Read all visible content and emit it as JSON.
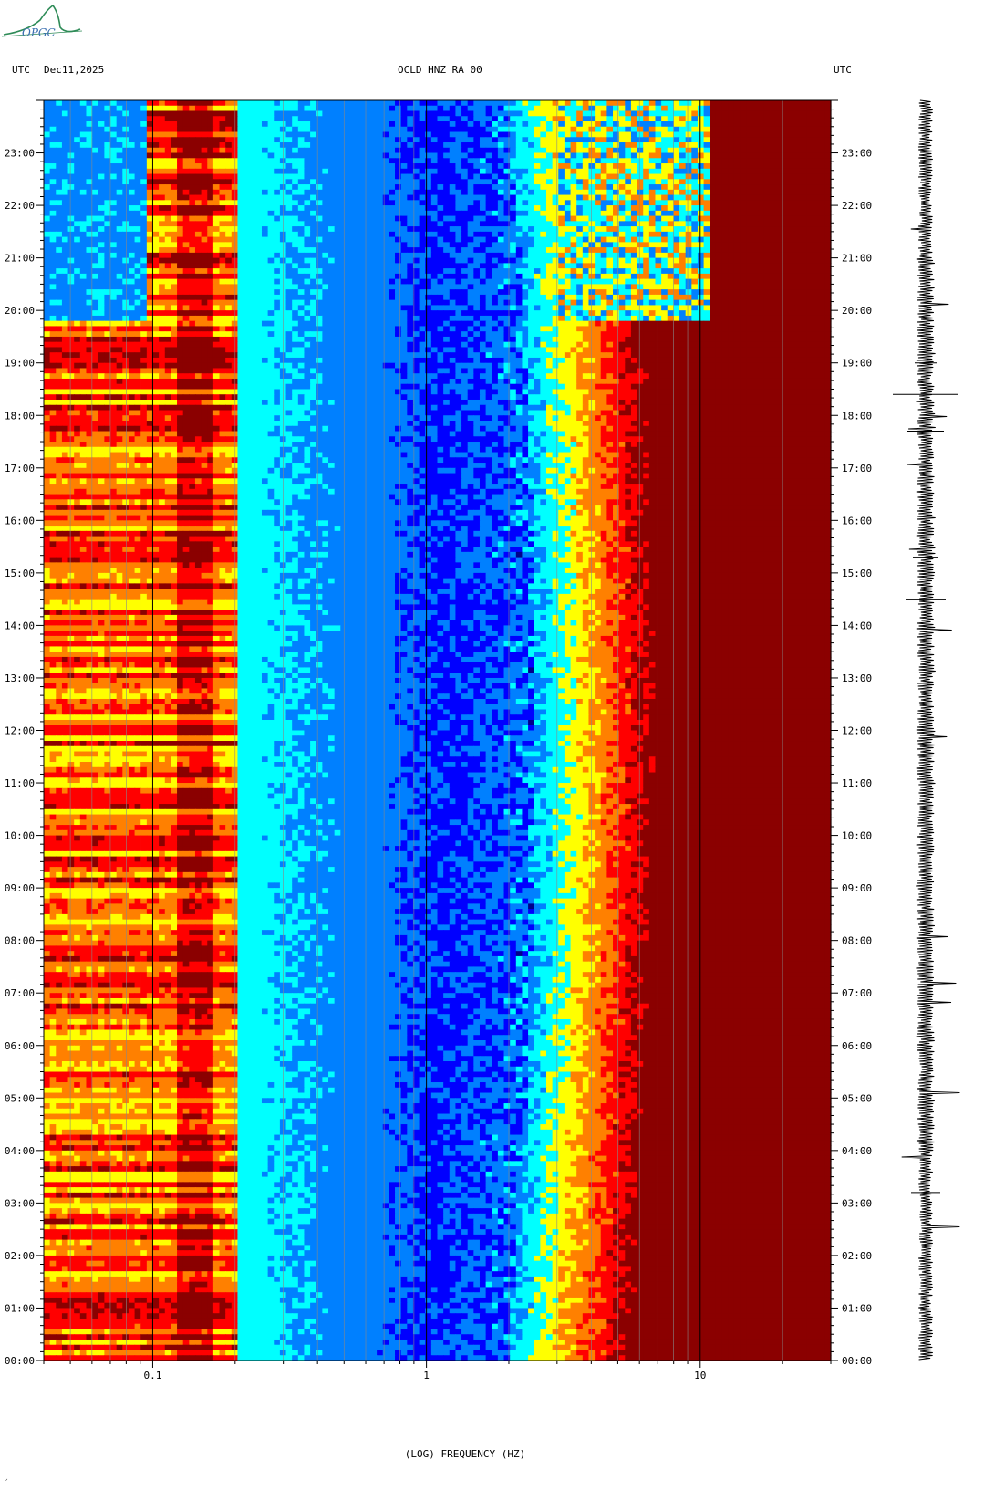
{
  "logo": {
    "text": "OPGC",
    "color": "#2e8b57"
  },
  "header": {
    "left_tz": "UTC",
    "date": "Dec11,2025",
    "station": "OCLD HNZ RA 00",
    "right_tz": "UTC"
  },
  "chart_data": {
    "type": "heatmap",
    "title": "OCLD HNZ RA 00",
    "xlabel": "(LOG) FREQUENCY (HZ)",
    "ylabel": "",
    "x_scale": "log",
    "xlim": [
      0.04,
      30
    ],
    "x_ticks": [
      {
        "value": 0.1,
        "label": "0.1"
      },
      {
        "value": 1,
        "label": "1"
      },
      {
        "value": 10,
        "label": "10"
      }
    ],
    "ylim_hours": [
      0,
      24
    ],
    "y_ticks": [
      "00:00",
      "01:00",
      "02:00",
      "03:00",
      "04:00",
      "05:00",
      "06:00",
      "07:00",
      "08:00",
      "09:00",
      "10:00",
      "11:00",
      "12:00",
      "13:00",
      "14:00",
      "15:00",
      "16:00",
      "17:00",
      "18:00",
      "19:00",
      "20:00",
      "21:00",
      "22:00",
      "23:00"
    ],
    "colormap": [
      "#00008b",
      "#0000ff",
      "#0080ff",
      "#00ffff",
      "#ffff00",
      "#ff8000",
      "#ff0000",
      "#8b0000"
    ],
    "seismogram_color": "#000000"
  }
}
